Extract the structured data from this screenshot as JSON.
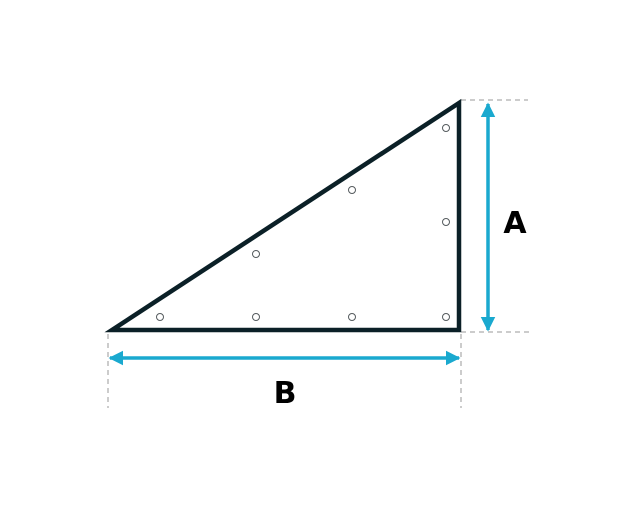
{
  "labels": {
    "height": "A",
    "base": "B"
  },
  "colors": {
    "outline": "#0b2027",
    "arrow": "#1aa9cf",
    "guide": "#9a9a9a",
    "dot": "#555b5e"
  },
  "icons": {
    "arrow": "double-headed-arrow",
    "dot": "small-circle"
  }
}
